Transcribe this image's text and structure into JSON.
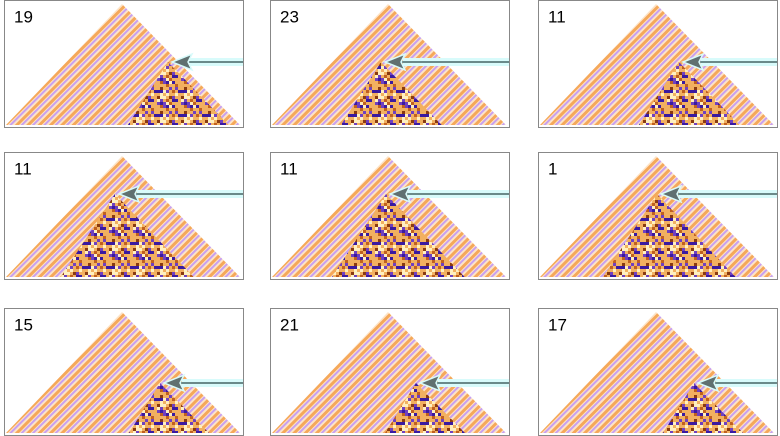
{
  "panels": [
    {
      "label": "19"
    },
    {
      "label": "23"
    },
    {
      "label": "11"
    },
    {
      "label": "11"
    },
    {
      "label": "11"
    },
    {
      "label": "1"
    },
    {
      "label": "15"
    },
    {
      "label": "21"
    },
    {
      "label": "17"
    }
  ]
}
